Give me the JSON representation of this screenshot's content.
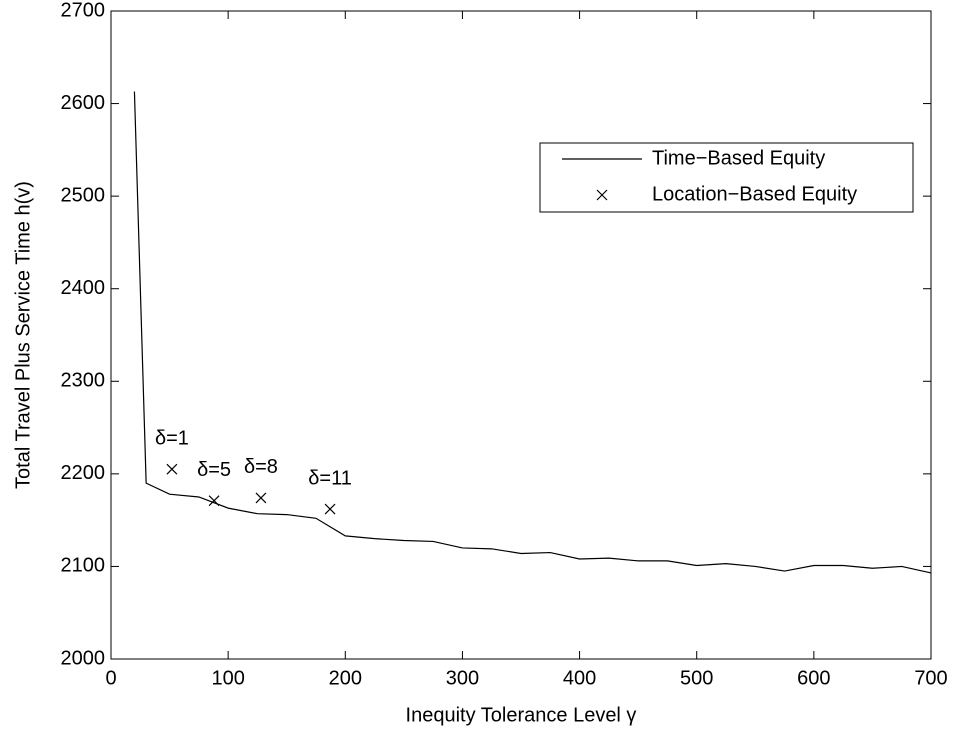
{
  "chart_data": {
    "type": "line",
    "xlabel": "Inequity Tolerance Level γ",
    "ylabel": "Total Travel Plus Service Time  h(v)",
    "xlim": [
      0,
      700
    ],
    "xticks": [
      0,
      100,
      200,
      300,
      400,
      500,
      600,
      700
    ],
    "ylim": [
      2000,
      2700
    ],
    "yticks": [
      2000,
      2100,
      2200,
      2300,
      2400,
      2500,
      2600,
      2700
    ],
    "grid": false,
    "legend": "upper right",
    "series": [
      {
        "name": "Time−Based Equity",
        "color": "#000000",
        "style": "line",
        "x": [
          20,
          30,
          50,
          75,
          100,
          125,
          150,
          175,
          200,
          225,
          250,
          275,
          300,
          325,
          350,
          375,
          400,
          425,
          450,
          475,
          500,
          525,
          550,
          575,
          600,
          625,
          650,
          675,
          700
        ],
        "values": [
          2613,
          2190,
          2178,
          2175,
          2163,
          2157,
          2156,
          2152,
          2133,
          2130,
          2128,
          2127,
          2120,
          2119,
          2114,
          2115,
          2108,
          2109,
          2106,
          2106,
          2101,
          2103,
          2100,
          2095,
          2101,
          2101,
          2098,
          2100,
          2093
        ]
      },
      {
        "name": "Location−Based Equity",
        "color": "#000000",
        "style": "marker",
        "x": [
          52,
          88,
          128,
          187
        ],
        "values": [
          2205,
          2171,
          2174,
          2162
        ],
        "point_labels": [
          "δ=1",
          "δ=5",
          "δ=8",
          "δ=11"
        ]
      }
    ]
  }
}
